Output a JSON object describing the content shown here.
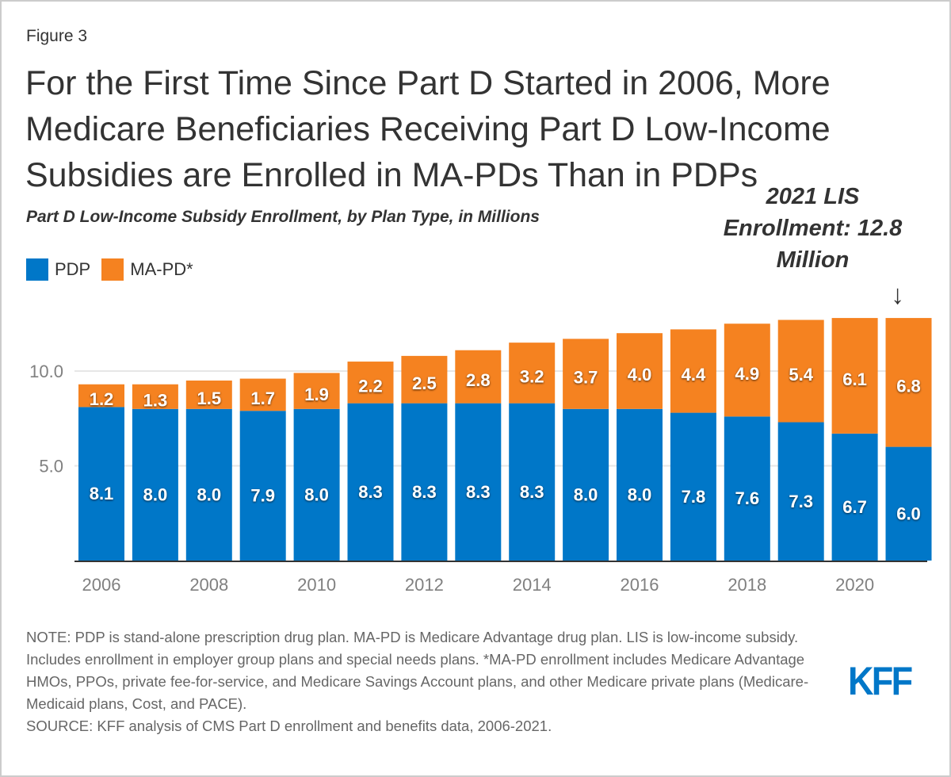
{
  "figure_label": "Figure 3",
  "title": "For the First Time Since Part D Started in 2006, More Medicare Beneficiaries Receiving Part D Low-Income Subsidies are Enrolled in MA-PDs Than in PDPs",
  "subtitle": "Part D Low-Income Subsidy Enrollment, by Plan Type, in Millions",
  "annotation": {
    "text": "2021 LIS Enrollment: 12.8 Million",
    "arrow": "↓"
  },
  "note": "NOTE: PDP is stand-alone prescription drug plan. MA-PD is Medicare Advantage drug plan. LIS is low-income subsidy. Includes enrollment in employer group plans and special needs plans. *MA-PD enrollment includes Medicare Advantage HMOs, PPOs, private fee-for-service, and Medicare Savings Account plans, and other Medicare private plans (Medicare-Medicaid plans, Cost, and PACE).",
  "source": "SOURCE: KFF analysis of CMS Part D enrollment and benefits data, 2006-2021.",
  "logo": "KFF",
  "colors": {
    "pdp": "#0077c8",
    "mapd": "#f58220",
    "grid": "#e6e6e6",
    "axis": "#333333",
    "tick": "#808080"
  },
  "chart_data": {
    "type": "bar",
    "stacked": true,
    "title": "For the First Time Since Part D Started in 2006, More Medicare Beneficiaries Receiving Part D Low-Income Subsidies are Enrolled in MA-PDs Than in PDPs",
    "subtitle": "Part D Low-Income Subsidy Enrollment, by Plan Type, in Millions",
    "xlabel": "",
    "ylabel": "",
    "categories": [
      "2006",
      "2007",
      "2008",
      "2009",
      "2010",
      "2011",
      "2012",
      "2013",
      "2014",
      "2015",
      "2016",
      "2017",
      "2018",
      "2019",
      "2020",
      "2021"
    ],
    "x_tick_labels": [
      "2006",
      "2008",
      "2010",
      "2012",
      "2014",
      "2016",
      "2018",
      "2020"
    ],
    "y_ticks": [
      "5.0",
      "10.0"
    ],
    "y_tick_values": [
      5,
      10
    ],
    "ylim": [
      0,
      13
    ],
    "grid": true,
    "legend_position": "top-left",
    "series": [
      {
        "name": "PDP",
        "color": "#0077c8",
        "values": [
          8.1,
          8.0,
          8.0,
          7.9,
          8.0,
          8.3,
          8.3,
          8.3,
          8.3,
          8.0,
          8.0,
          7.8,
          7.6,
          7.3,
          6.7,
          6.0
        ]
      },
      {
        "name": "MA-PD*",
        "color": "#f58220",
        "values": [
          1.2,
          1.3,
          1.5,
          1.7,
          1.9,
          2.2,
          2.5,
          2.8,
          3.2,
          3.7,
          4.0,
          4.4,
          4.9,
          5.4,
          6.1,
          6.8
        ]
      }
    ],
    "annotation": "2021 LIS Enrollment: 12.8 Million"
  }
}
